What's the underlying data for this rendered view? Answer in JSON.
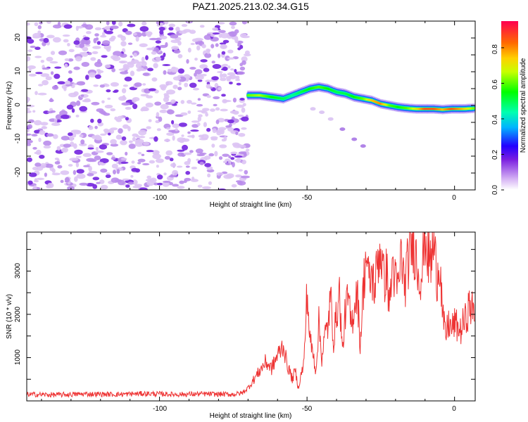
{
  "title": "PAZ1.2025.213.02.34.G15",
  "chart_data": [
    {
      "type": "heatmap",
      "xlabel": "Height of straight line (km)",
      "ylabel": "Frequency (Hz)",
      "xlim": [
        -145,
        7
      ],
      "ylim": [
        -25,
        25
      ],
      "x_ticks": [
        "-100",
        "-50",
        "0"
      ],
      "y_ticks": [
        "20",
        "10",
        "0",
        "-10",
        "-20"
      ],
      "x_tick_values": [
        -100,
        -50,
        0
      ],
      "y_tick_values": [
        20,
        10,
        0,
        -10,
        -20
      ],
      "noise_region_x": [
        -145,
        -70
      ],
      "signal_track": {
        "x": [
          -70,
          -66,
          -62,
          -58,
          -55,
          -52,
          -49,
          -46,
          -43,
          -40,
          -37,
          -34,
          -31,
          -28,
          -25,
          -22,
          -19,
          -16,
          -13,
          -10,
          -7,
          -4,
          -1,
          3,
          7
        ],
        "frequency": [
          3.0,
          3.0,
          2.5,
          2.0,
          3.0,
          4.0,
          5.0,
          5.5,
          5.0,
          4.0,
          3.5,
          2.5,
          2.0,
          1.5,
          0.5,
          0.0,
          -0.5,
          -0.8,
          -1.0,
          -1.0,
          -1.0,
          -1.2,
          -1.0,
          -1.0,
          -0.8
        ],
        "amplitude": [
          0.6,
          0.65,
          0.55,
          0.5,
          0.45,
          0.5,
          0.55,
          0.6,
          0.55,
          0.5,
          0.5,
          0.55,
          0.6,
          0.75,
          0.8,
          0.6,
          0.55,
          0.6,
          0.7,
          0.85,
          0.85,
          0.75,
          0.85,
          0.75,
          0.6
        ]
      },
      "secondary_feature": {
        "x": [
          -48,
          -45,
          -42,
          -38,
          -34,
          -31
        ],
        "frequency": [
          -1,
          -2,
          -4,
          -7,
          -10,
          -12
        ]
      },
      "colorbar": {
        "label": "Normalized spectral amplitude",
        "ticks": [
          "0.0",
          "0.2",
          "0.4",
          "0.6",
          "0.8"
        ],
        "tick_values": [
          0.0,
          0.2,
          0.4,
          0.6,
          0.8
        ],
        "range": [
          0,
          0.95
        ],
        "colormap": "rainbow"
      }
    },
    {
      "type": "line",
      "xlabel": "Height of straight line (km)",
      "ylabel": "SNR (10 * v/v)",
      "xlim": [
        -145,
        7
      ],
      "ylim": [
        0,
        3900
      ],
      "x_ticks": [
        "-100",
        "-50",
        "0"
      ],
      "y_ticks": [
        "1000",
        "2000",
        "3000"
      ],
      "x_tick_values": [
        -100,
        -50,
        0
      ],
      "y_tick_values": [
        1000,
        2000,
        3000
      ],
      "color": "#ee3333",
      "series": [
        {
          "x": [
            -145,
            -135,
            -125,
            -115,
            -105,
            -95,
            -85,
            -75,
            -72,
            -70,
            -68,
            -66,
            -64,
            -62,
            -60,
            -58,
            -57,
            -56,
            -55,
            -54,
            -53,
            -52,
            -51,
            -50,
            -49,
            -48,
            -47,
            -46,
            -45,
            -44,
            -43,
            -42,
            -41,
            -40,
            -39,
            -38,
            -37,
            -36,
            -35,
            -34,
            -33,
            -32,
            -31,
            -30,
            -29,
            -28,
            -27,
            -26,
            -25,
            -24,
            -23,
            -22,
            -21,
            -20,
            -19,
            -18,
            -17,
            -16,
            -15,
            -14,
            -13,
            -12,
            -11,
            -10,
            -9,
            -8,
            -7,
            -6,
            -5,
            -4,
            -3,
            -2,
            -1,
            0,
            1,
            2,
            3,
            4,
            5,
            6,
            7
          ],
          "y": [
            150,
            140,
            160,
            150,
            170,
            150,
            160,
            150,
            180,
            300,
            500,
            700,
            900,
            750,
            1050,
            1300,
            900,
            700,
            500,
            700,
            300,
            600,
            900,
            2550,
            1400,
            1100,
            700,
            1800,
            1000,
            1500,
            1700,
            2400,
            1400,
            2000,
            2500,
            1100,
            2100,
            2350,
            1700,
            2200,
            2600,
            1300,
            2500,
            3400,
            2700,
            2900,
            2600,
            3300,
            3500,
            2800,
            3000,
            2200,
            3200,
            2700,
            2600,
            3450,
            2600,
            3100,
            3500,
            3700,
            3300,
            2900,
            3000,
            3900,
            3300,
            3200,
            3600,
            2900,
            3300,
            1900,
            1500,
            1800,
            1650,
            1800,
            1700,
            1600,
            1800,
            1900,
            2200,
            2100,
            1900
          ]
        }
      ]
    }
  ]
}
